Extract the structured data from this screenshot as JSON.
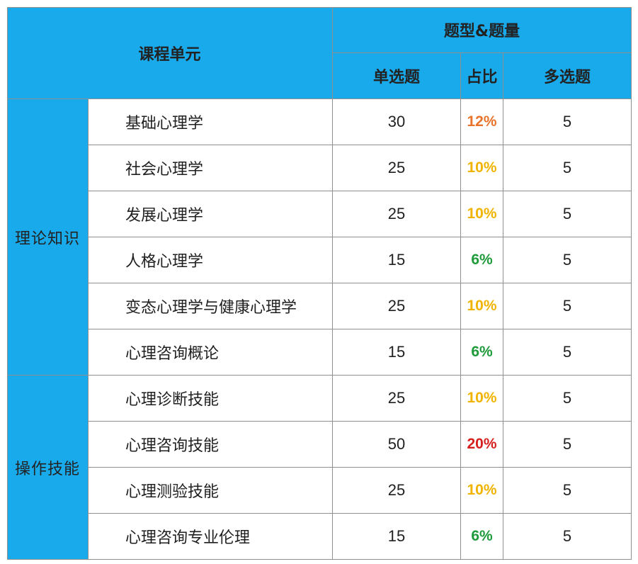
{
  "header": {
    "course_unit": "课程单元",
    "question_type_group": "题型&题量",
    "single_choice": "单选题",
    "ratio": "占比",
    "multi_choice": "多选题"
  },
  "sections": [
    {
      "label": "理论知识"
    },
    {
      "label": "操作技能"
    }
  ],
  "rows": [
    {
      "unit": "基础心理学",
      "single": "30",
      "ratio": "12%",
      "ratio_color": "#e8742c",
      "multi": "5",
      "section": 0
    },
    {
      "unit": "社会心理学",
      "single": "25",
      "ratio": "10%",
      "ratio_color": "#f0b400",
      "multi": "5",
      "section": 0
    },
    {
      "unit": "发展心理学",
      "single": "25",
      "ratio": "10%",
      "ratio_color": "#f0b400",
      "multi": "5",
      "section": 0
    },
    {
      "unit": "人格心理学",
      "single": "15",
      "ratio": "6%",
      "ratio_color": "#1f9a3a",
      "multi": "5",
      "section": 0
    },
    {
      "unit": "变态心理学与健康心理学",
      "single": "25",
      "ratio": "10%",
      "ratio_color": "#f0b400",
      "multi": "5",
      "section": 0
    },
    {
      "unit": "心理咨询概论",
      "single": "15",
      "ratio": "6%",
      "ratio_color": "#1f9a3a",
      "multi": "5",
      "section": 0
    },
    {
      "unit": "心理诊断技能",
      "single": "25",
      "ratio": "10%",
      "ratio_color": "#f0b400",
      "multi": "5",
      "section": 1
    },
    {
      "unit": "心理咨询技能",
      "single": "50",
      "ratio": "20%",
      "ratio_color": "#d61f1f",
      "multi": "5",
      "section": 1
    },
    {
      "unit": "心理测验技能",
      "single": "25",
      "ratio": "10%",
      "ratio_color": "#f0b400",
      "multi": "5",
      "section": 1
    },
    {
      "unit": "心理咨询专业伦理",
      "single": "15",
      "ratio": "6%",
      "ratio_color": "#1f9a3a",
      "multi": "5",
      "section": 1
    }
  ]
}
